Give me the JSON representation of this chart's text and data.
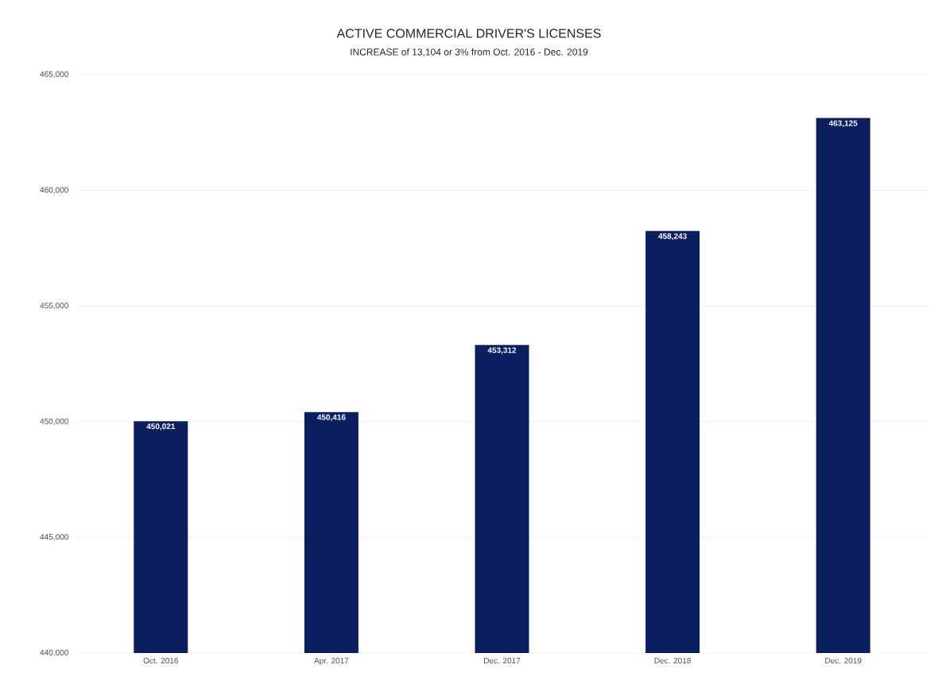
{
  "chart_data": {
    "type": "bar",
    "title": "ACTIVE COMMERCIAL DRIVER'S LICENSES",
    "subtitle": "INCREASE of 13,104 or 3% from Oct. 2016 - Dec. 2019",
    "categories": [
      "Oct. 2016",
      "Apr. 2017",
      "Dec. 2017",
      "Dec. 2018",
      "Dec. 2019"
    ],
    "values": [
      450021,
      450416,
      453312,
      458243,
      463125
    ],
    "value_labels": [
      "450,021",
      "450,416",
      "453,312",
      "458,243",
      "463,125"
    ],
    "color": "#0b1f5e",
    "ylim": [
      440000,
      465000
    ],
    "yticks": [
      {
        "value": 440000,
        "label": "440,000"
      },
      {
        "value": 445000,
        "label": "445,000"
      },
      {
        "value": 450000,
        "label": "450,000"
      },
      {
        "value": 455000,
        "label": "455,000"
      },
      {
        "value": 460000,
        "label": "460,000"
      },
      {
        "value": 465000,
        "label": "465,000"
      }
    ],
    "grid": "y"
  }
}
